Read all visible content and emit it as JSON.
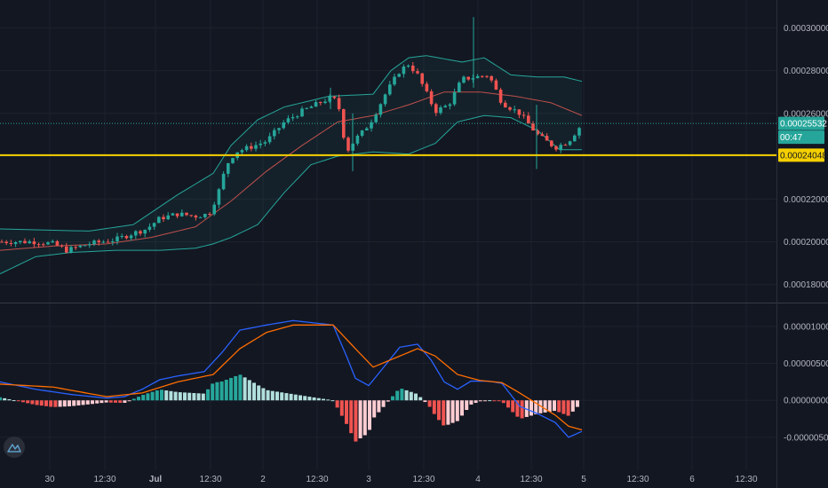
{
  "chart_data": [
    {
      "type": "candlestick",
      "title": "",
      "y_ticks": [
        "0.00030000",
        "0.00028000",
        "0.00026000",
        "0.00022000",
        "0.00020000",
        "0.00018000"
      ],
      "ylim": [
        0.000172,
        0.000313
      ],
      "x_ticks": [
        "30",
        "12:30",
        "Jul",
        "12:30",
        "2",
        "12:30",
        "3",
        "12:30",
        "4",
        "12:30",
        "5",
        "12:30",
        "6",
        "12:30"
      ],
      "last_price_label": "0.00025532",
      "countdown_label": "00:47",
      "horizontal_line_label": "0.00024048",
      "horizontal_line_value": 0.00024048,
      "colors": {
        "up": "#26a69a",
        "down": "#ef5350",
        "hline": "#f5d000",
        "bb": "#26a69a",
        "basis": "#c0504d"
      },
      "close_anchors": [
        [
          0,
          0.0002
        ],
        [
          20,
          0.0002
        ],
        [
          40,
          0.0002
        ],
        [
          60,
          0.000199
        ],
        [
          75,
          0.000196
        ],
        [
          100,
          0.000199
        ],
        [
          130,
          0.000201
        ],
        [
          150,
          0.000204
        ],
        [
          165,
          0.000206
        ],
        [
          180,
          0.000211
        ],
        [
          200,
          0.000213
        ],
        [
          220,
          0.000212
        ],
        [
          235,
          0.000213
        ],
        [
          245,
          0.000222
        ],
        [
          255,
          0.000236
        ],
        [
          265,
          0.000242
        ],
        [
          280,
          0.000244
        ],
        [
          300,
          0.000247
        ],
        [
          320,
          0.000256
        ],
        [
          340,
          0.000261
        ],
        [
          355,
          0.000264
        ],
        [
          370,
          0.000267
        ],
        [
          380,
          0.000266
        ],
        [
          390,
          0.000242
        ],
        [
          400,
          0.000248
        ],
        [
          410,
          0.000252
        ],
        [
          420,
          0.000258
        ],
        [
          435,
          0.00027
        ],
        [
          450,
          0.00028
        ],
        [
          460,
          0.000283
        ],
        [
          470,
          0.000278
        ],
        [
          490,
          0.000261
        ],
        [
          505,
          0.000264
        ],
        [
          520,
          0.000276
        ],
        [
          535,
          0.000277
        ],
        [
          550,
          0.000278
        ],
        [
          565,
          0.000265
        ],
        [
          585,
          0.00026
        ],
        [
          605,
          0.00025
        ],
        [
          625,
          0.000244
        ],
        [
          640,
          0.000247
        ],
        [
          655,
          0.000255
        ]
      ],
      "bb_upper_anchors": [
        [
          0,
          0.000206
        ],
        [
          100,
          0.000205
        ],
        [
          150,
          0.000208
        ],
        [
          200,
          0.000222
        ],
        [
          240,
          0.000232
        ],
        [
          260,
          0.000245
        ],
        [
          290,
          0.000257
        ],
        [
          320,
          0.000263
        ],
        [
          370,
          0.000268
        ],
        [
          420,
          0.000269
        ],
        [
          440,
          0.00028
        ],
        [
          460,
          0.000286
        ],
        [
          480,
          0.000287
        ],
        [
          520,
          0.000284
        ],
        [
          545,
          0.000286
        ],
        [
          575,
          0.000278
        ],
        [
          605,
          0.000277
        ],
        [
          635,
          0.000277
        ],
        [
          655,
          0.000275
        ]
      ],
      "bb_lower_anchors": [
        [
          0,
          0.000185
        ],
        [
          40,
          0.000193
        ],
        [
          80,
          0.000195
        ],
        [
          130,
          0.000196
        ],
        [
          180,
          0.000196
        ],
        [
          220,
          0.000197
        ],
        [
          240,
          0.000199
        ],
        [
          260,
          0.000202
        ],
        [
          290,
          0.000208
        ],
        [
          320,
          0.000223
        ],
        [
          350,
          0.000236
        ],
        [
          380,
          0.00024
        ],
        [
          420,
          0.000242
        ],
        [
          460,
          0.000241
        ],
        [
          490,
          0.000246
        ],
        [
          515,
          0.000256
        ],
        [
          545,
          0.000259
        ],
        [
          575,
          0.000258
        ],
        [
          605,
          0.000252
        ],
        [
          630,
          0.000243
        ],
        [
          655,
          0.000243
        ]
      ],
      "bb_basis_anchors": [
        [
          0,
          0.000196
        ],
        [
          60,
          0.000198
        ],
        [
          120,
          0.000199
        ],
        [
          170,
          0.000202
        ],
        [
          220,
          0.000207
        ],
        [
          260,
          0.000219
        ],
        [
          300,
          0.000233
        ],
        [
          340,
          0.000245
        ],
        [
          380,
          0.000256
        ],
        [
          420,
          0.000259
        ],
        [
          460,
          0.000264
        ],
        [
          500,
          0.00027
        ],
        [
          540,
          0.00027
        ],
        [
          580,
          0.000268
        ],
        [
          620,
          0.000265
        ],
        [
          655,
          0.000259
        ]
      ]
    },
    {
      "type": "macd",
      "y_ticks": [
        "0.00001000",
        "0.00000500",
        "0.00000000",
        "-0.00000500"
      ],
      "ylim": [
        -8.5e-06,
        1.3e-05
      ],
      "colors": {
        "macd": "#2962ff",
        "signal": "#ff6d00",
        "hist_up_strong": "#26a69a",
        "hist_up_weak": "#b2dfdb",
        "hist_down_strong": "#ef5350",
        "hist_down_weak": "#ffcdd2"
      },
      "macd_anchors": [
        [
          0,
          2.5e-06
        ],
        [
          40,
          1.5e-06
        ],
        [
          80,
          8e-07
        ],
        [
          120,
          3e-07
        ],
        [
          140,
          5e-07
        ],
        [
          160,
          1.5e-06
        ],
        [
          180,
          2.8e-06
        ],
        [
          200,
          3.3e-06
        ],
        [
          230,
          3.9e-06
        ],
        [
          250,
          6.5e-06
        ],
        [
          270,
          9.5e-06
        ],
        [
          300,
          1.02e-05
        ],
        [
          330,
          1.08e-05
        ],
        [
          360,
          1.04e-05
        ],
        [
          375,
          1.02e-05
        ],
        [
          390,
          6e-06
        ],
        [
          400,
          3e-06
        ],
        [
          415,
          2e-06
        ],
        [
          430,
          4.2e-06
        ],
        [
          450,
          7.2e-06
        ],
        [
          470,
          7.6e-06
        ],
        [
          485,
          5.5e-06
        ],
        [
          500,
          2.5e-06
        ],
        [
          515,
          1.5e-06
        ],
        [
          530,
          2.6e-06
        ],
        [
          550,
          2.6e-06
        ],
        [
          565,
          2.3e-06
        ],
        [
          585,
          -8e-07
        ],
        [
          605,
          -1.8e-06
        ],
        [
          625,
          -3e-06
        ],
        [
          640,
          -5e-06
        ],
        [
          655,
          -4.2e-06
        ]
      ],
      "signal_anchors": [
        [
          0,
          2.2e-06
        ],
        [
          60,
          1.8e-06
        ],
        [
          120,
          5e-07
        ],
        [
          160,
          1e-06
        ],
        [
          200,
          2.5e-06
        ],
        [
          240,
          3.5e-06
        ],
        [
          270,
          7e-06
        ],
        [
          300,
          9.2e-06
        ],
        [
          330,
          1.02e-05
        ],
        [
          375,
          1.02e-05
        ],
        [
          400,
          7e-06
        ],
        [
          420,
          4.5e-06
        ],
        [
          440,
          5.5e-06
        ],
        [
          470,
          7e-06
        ],
        [
          490,
          6e-06
        ],
        [
          515,
          3.5e-06
        ],
        [
          540,
          2.7e-06
        ],
        [
          565,
          2.4e-06
        ],
        [
          585,
          1e-06
        ],
        [
          605,
          -5e-07
        ],
        [
          625,
          -2e-06
        ],
        [
          640,
          -3.5e-06
        ],
        [
          655,
          -4e-06
        ]
      ]
    }
  ]
}
